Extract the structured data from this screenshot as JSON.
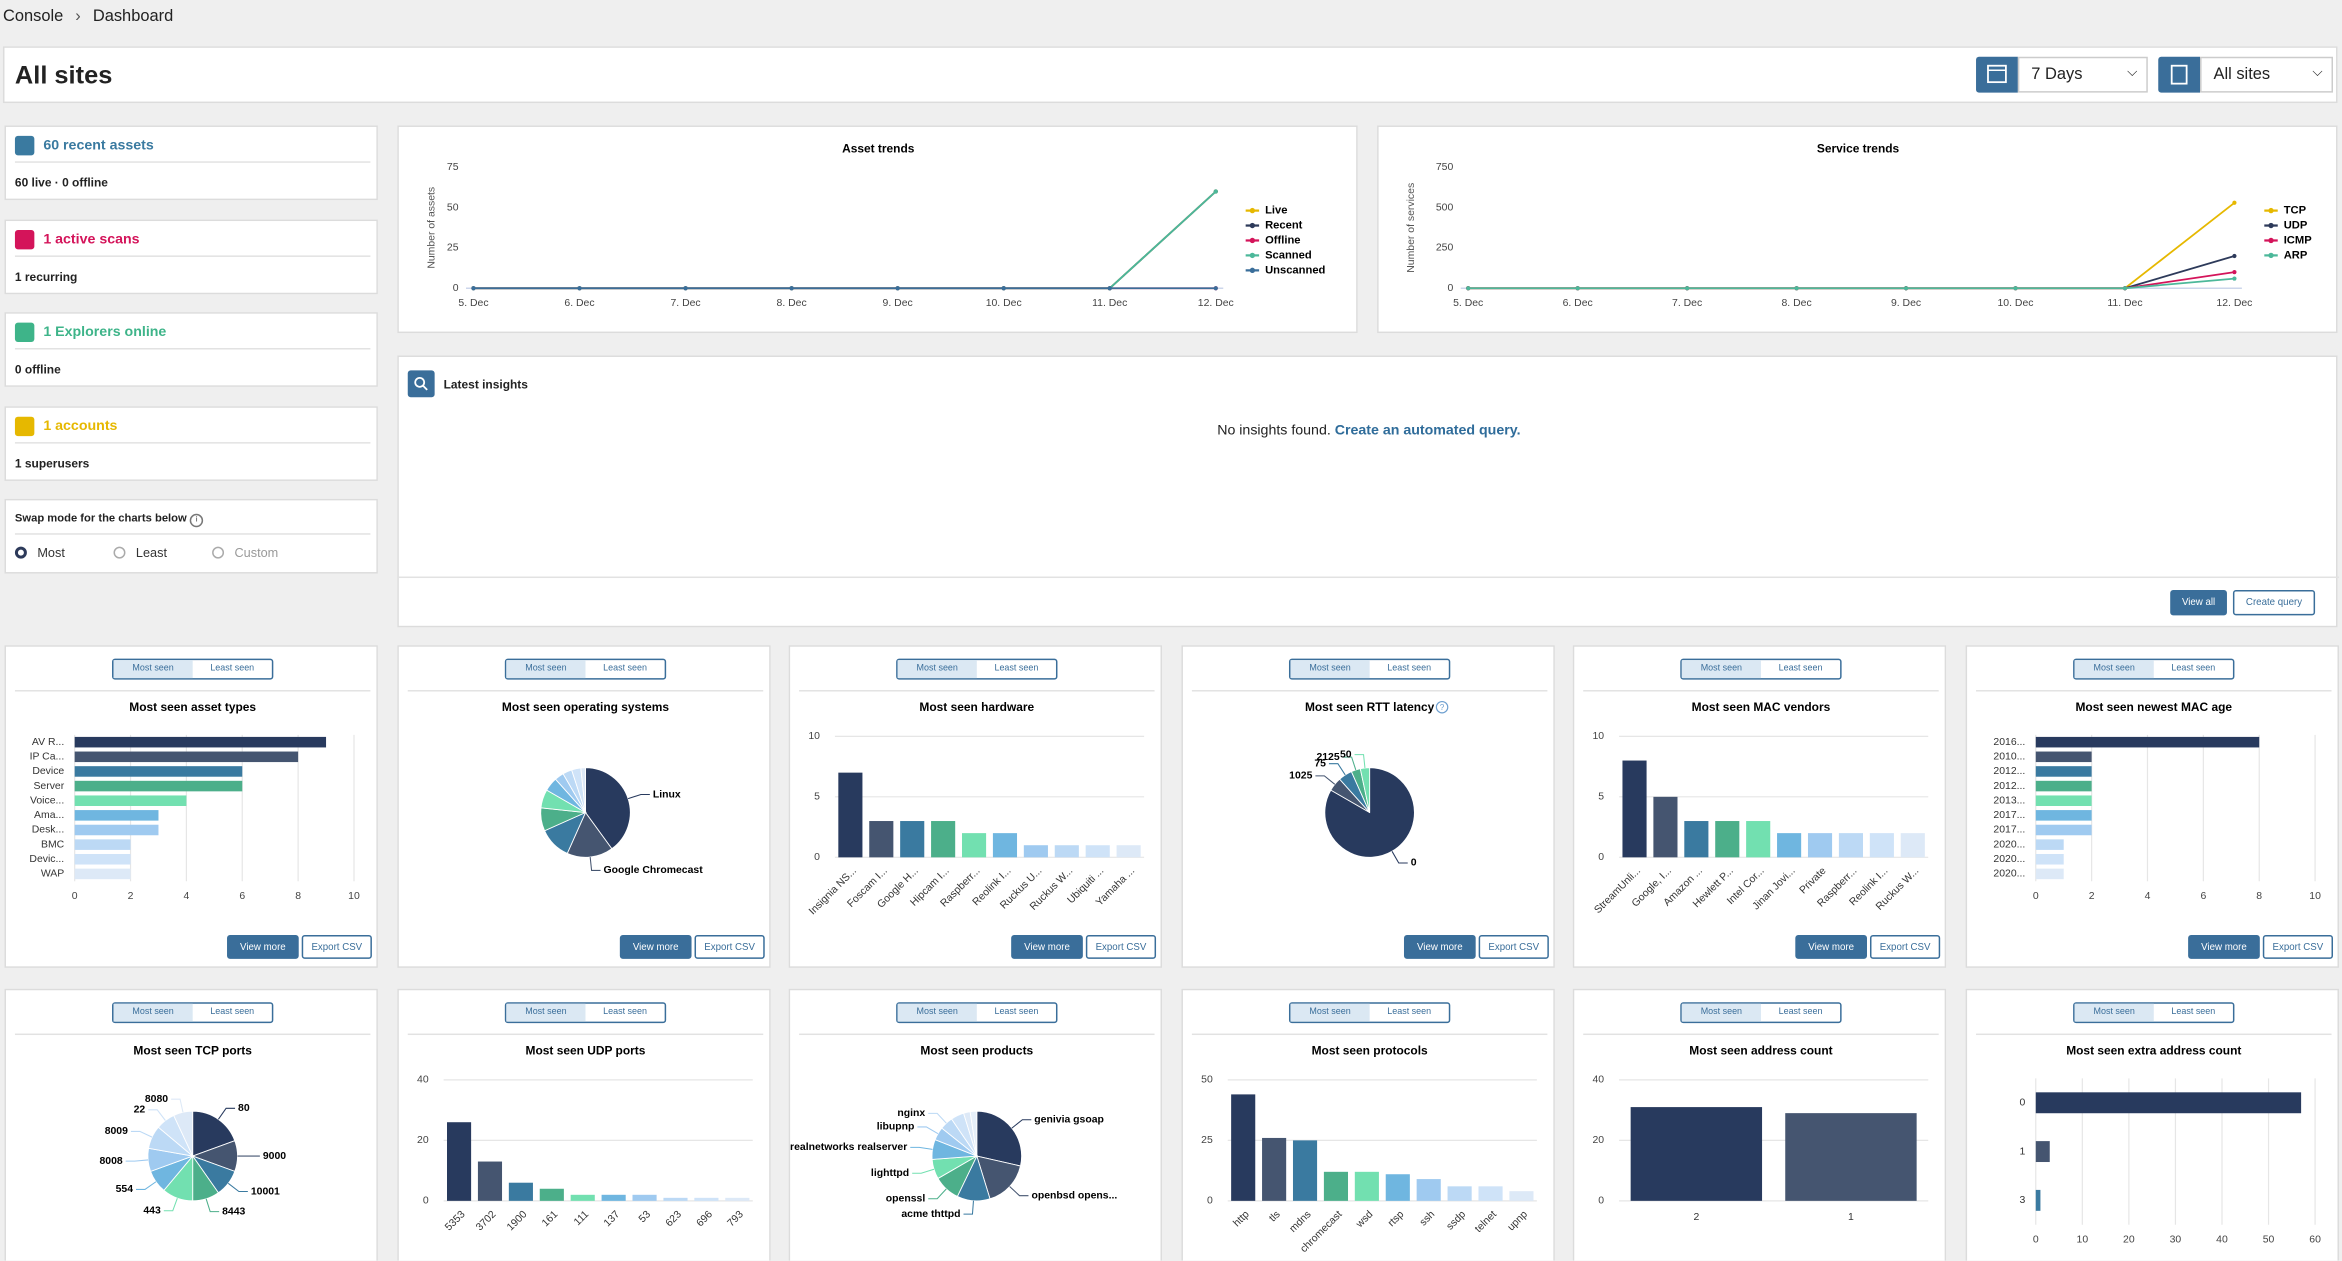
{
  "breadcrumb": [
    "Console",
    "Dashboard"
  ],
  "header": {
    "title": "All sites",
    "range": "7 Days",
    "site": "All sites"
  },
  "stats": [
    {
      "title": "60 recent assets",
      "detail": "60 live · 0 offline",
      "color": "#3a7aa0"
    },
    {
      "title": "1 active scans",
      "detail": "1 recurring",
      "color": "#d4145a"
    },
    {
      "title": "1 Explorers online",
      "detail": "0 offline",
      "color": "#3eb489"
    },
    {
      "title": "1 accounts",
      "detail": "1 superusers",
      "color": "#e6b800"
    }
  ],
  "swap": {
    "label": "Swap mode for the charts below",
    "options": [
      "Most",
      "Least",
      "Custom"
    ],
    "selected": 0
  },
  "insights": {
    "title": "Latest insights",
    "empty": "No insights found.",
    "link": "Create an automated query.",
    "buttons": [
      "View all",
      "Create query"
    ]
  },
  "panel_toggle": [
    "Most seen",
    "Least seen"
  ],
  "panel_buttons": [
    "View more",
    "Export CSV"
  ],
  "palette": [
    "#283a5e",
    "#455570",
    "#3a7aa0",
    "#4caf8a",
    "#72e0b0",
    "#6fb6e0",
    "#9fcaf0",
    "#bcd9f5",
    "#cfe3f8",
    "#dde9f7",
    "#e6eff9"
  ],
  "chart_data": [
    {
      "type": "line",
      "title": "Asset trends",
      "y_label": "Number of assets",
      "categories": [
        "5. Dec",
        "6. Dec",
        "7. Dec",
        "8. Dec",
        "9. Dec",
        "10. Dec",
        "11. Dec",
        "12. Dec"
      ],
      "ylim": [
        0,
        75
      ],
      "yticks": [
        0,
        25,
        50,
        75
      ],
      "series": [
        {
          "name": "Live",
          "color": "#e6b800",
          "values": [
            0,
            0,
            0,
            0,
            0,
            0,
            0,
            60
          ]
        },
        {
          "name": "Recent",
          "color": "#2d3a5a",
          "values": [
            0,
            0,
            0,
            0,
            0,
            0,
            0,
            60
          ]
        },
        {
          "name": "Offline",
          "color": "#d4145a",
          "values": [
            0,
            0,
            0,
            0,
            0,
            0,
            0,
            0
          ]
        },
        {
          "name": "Scanned",
          "color": "#4cb89a",
          "values": [
            0,
            0,
            0,
            0,
            0,
            0,
            0,
            60
          ]
        },
        {
          "name": "Unscanned",
          "color": "#3a6e9a",
          "values": [
            0,
            0,
            0,
            0,
            0,
            0,
            0,
            0
          ]
        }
      ]
    },
    {
      "type": "line",
      "title": "Service trends",
      "y_label": "Number of services",
      "categories": [
        "5. Dec",
        "6. Dec",
        "7. Dec",
        "8. Dec",
        "9. Dec",
        "10. Dec",
        "11. Dec",
        "12. Dec"
      ],
      "ylim": [
        0,
        750
      ],
      "yticks": [
        0,
        250,
        500,
        750
      ],
      "series": [
        {
          "name": "TCP",
          "color": "#e6b800",
          "values": [
            0,
            0,
            0,
            0,
            0,
            0,
            0,
            530
          ]
        },
        {
          "name": "UDP",
          "color": "#2d3a5a",
          "values": [
            0,
            0,
            0,
            0,
            0,
            0,
            0,
            200
          ]
        },
        {
          "name": "ICMP",
          "color": "#d4145a",
          "values": [
            0,
            0,
            0,
            0,
            0,
            0,
            0,
            100
          ]
        },
        {
          "name": "ARP",
          "color": "#4cb89a",
          "values": [
            0,
            0,
            0,
            0,
            0,
            0,
            0,
            60
          ]
        }
      ]
    },
    {
      "type": "hbar",
      "title": "Most seen asset types",
      "categories": [
        "AV R...",
        "IP Ca...",
        "Device",
        "Server",
        "Voice...",
        "Ama...",
        "Desk...",
        "BMC",
        "Devic...",
        "WAP"
      ],
      "values": [
        9,
        8,
        6,
        6,
        4,
        3,
        3,
        2,
        2,
        2
      ],
      "xlim": [
        0,
        10
      ],
      "xticks": [
        0,
        2,
        4,
        6,
        8,
        10
      ]
    },
    {
      "type": "pie",
      "title": "Most seen operating systems",
      "categories": [
        "Linux",
        "Google Chromecast",
        null,
        null,
        null,
        null,
        null,
        null,
        null,
        null
      ],
      "values": [
        24,
        10,
        7,
        5,
        4,
        3,
        2,
        2,
        2,
        1
      ]
    },
    {
      "type": "vbar",
      "title": "Most seen hardware",
      "categories": [
        "Insignia NS...",
        "Foscam I...",
        "Google H...",
        "Hipcam I...",
        "Raspberr...",
        "Reolink I...",
        "Ruckus U...",
        "Ruckus W...",
        "Ubiquiti ...",
        "Yamaha ..."
      ],
      "values": [
        7,
        3,
        3,
        3,
        2,
        2,
        1,
        1,
        1,
        1
      ],
      "ylim": [
        0,
        10
      ],
      "yticks": [
        0,
        5,
        10
      ]
    },
    {
      "type": "pie",
      "title": "Most seen RTT latency",
      "categories": [
        "0",
        "1025",
        "75",
        "2125",
        "50"
      ],
      "values": [
        50,
        3,
        3,
        2,
        2
      ]
    },
    {
      "type": "vbar",
      "title": "Most seen MAC vendors",
      "categories": [
        "StreamUnli...",
        "Google, I...",
        "Amazon ...",
        "Hewlett P...",
        "Intel Cor...",
        "Jinan Jovi...",
        "Private",
        "Raspberr...",
        "Reolink I...",
        "Ruckus W..."
      ],
      "values": [
        8,
        5,
        3,
        3,
        3,
        2,
        2,
        2,
        2,
        2
      ],
      "ylim": [
        0,
        10
      ],
      "yticks": [
        0,
        5,
        10
      ]
    },
    {
      "type": "hbar",
      "title": "Most seen newest MAC age",
      "categories": [
        "2016...",
        "2010...",
        "2012...",
        "2012...",
        "2013...",
        "2017...",
        "2017...",
        "2020...",
        "2020...",
        "2020..."
      ],
      "values": [
        8,
        2,
        2,
        2,
        2,
        2,
        2,
        1,
        1,
        1
      ],
      "xlim": [
        0,
        10
      ],
      "xticks": [
        0,
        2,
        4,
        6,
        8,
        10
      ]
    },
    {
      "type": "pie",
      "title": "Most seen TCP ports",
      "categories": [
        "80",
        "9000",
        "10001",
        "8443",
        "443",
        "554",
        "8008",
        "8009",
        "22",
        "8080"
      ],
      "values": [
        14,
        8,
        7,
        7,
        8,
        6,
        6,
        6,
        5,
        5
      ]
    },
    {
      "type": "vbar",
      "title": "Most seen UDP ports",
      "categories": [
        "5353",
        "3702",
        "1900",
        "161",
        "111",
        "137",
        "53",
        "623",
        "696",
        "793"
      ],
      "values": [
        26,
        13,
        6,
        4,
        2,
        2,
        2,
        1,
        1,
        1
      ],
      "ylim": [
        0,
        40
      ],
      "yticks": [
        0,
        20,
        40
      ]
    },
    {
      "type": "pie",
      "title": "Most seen products",
      "categories": [
        "genivia gsoap",
        "openbsd opens...",
        "acme thttpd",
        "openssl",
        "lighttpd",
        "realnetworks realserver",
        "libupnp",
        "nginx",
        null,
        null,
        null
      ],
      "values": [
        12,
        7,
        5,
        4,
        3,
        3,
        2,
        2,
        2,
        1,
        1
      ]
    },
    {
      "type": "vbar",
      "title": "Most seen protocols",
      "categories": [
        "http",
        "tls",
        "mdns",
        "chromecast",
        "wsd",
        "rtsp",
        "ssh",
        "ssdp",
        "telnet",
        "upnp"
      ],
      "values": [
        44,
        26,
        25,
        12,
        12,
        11,
        9,
        6,
        6,
        4
      ],
      "ylim": [
        0,
        50
      ],
      "yticks": [
        0,
        25,
        50
      ]
    },
    {
      "type": "vbar",
      "title": "Most seen address count",
      "categories": [
        "2",
        "1"
      ],
      "values": [
        31,
        29
      ],
      "ylim": [
        0,
        40
      ],
      "yticks": [
        0,
        20,
        40
      ]
    },
    {
      "type": "hbar",
      "title": "Most seen extra address count",
      "categories": [
        "0",
        "1",
        "3"
      ],
      "values": [
        57,
        3,
        1
      ],
      "xlim": [
        0,
        60
      ],
      "xticks": [
        0,
        10,
        20,
        30,
        40,
        50,
        60
      ]
    }
  ]
}
